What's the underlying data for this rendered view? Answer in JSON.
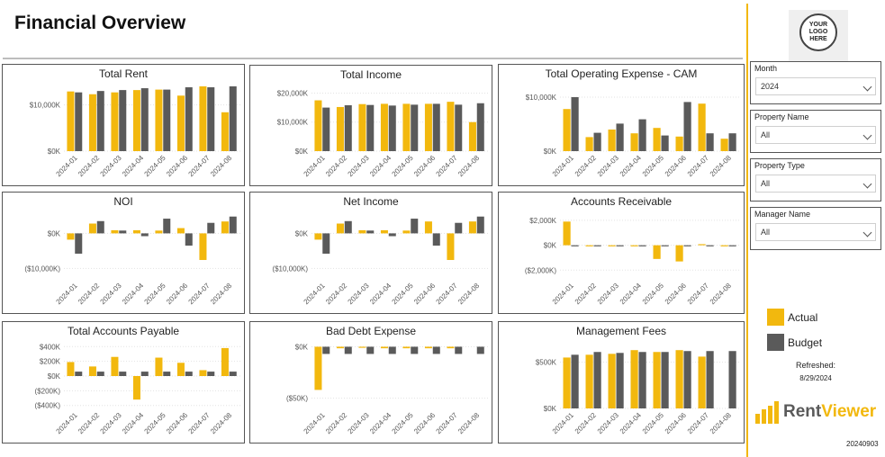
{
  "page": {
    "title": "Financial Overview"
  },
  "colors": {
    "actual": "#f2b80e",
    "budget": "#5a5a5a",
    "accent": "#f2b80e"
  },
  "months": [
    "2024-01",
    "2024-02",
    "2024-03",
    "2024-04",
    "2024-05",
    "2024-06",
    "2024-07",
    "2024-08"
  ],
  "chart_data": [
    {
      "id": "total-rent",
      "type": "bar",
      "title": "Total Rent",
      "categories": [
        "2024-01",
        "2024-02",
        "2024-03",
        "2024-04",
        "2024-05",
        "2024-06",
        "2024-07",
        "2024-08"
      ],
      "ylim": [
        0,
        14000
      ],
      "yticks": [
        0,
        10000
      ],
      "yticklabels": [
        "$0K",
        "$10,000K"
      ],
      "series": [
        {
          "name": "Actual",
          "values": [
            12900,
            12300,
            12700,
            13200,
            13300,
            12000,
            14000,
            8400
          ]
        },
        {
          "name": "Budget",
          "values": [
            12700,
            13000,
            13200,
            13600,
            13300,
            13800,
            13800,
            14000
          ]
        }
      ]
    },
    {
      "id": "total-income",
      "type": "bar",
      "title": "Total Income",
      "categories": [
        "2024-01",
        "2024-02",
        "2024-03",
        "2024-04",
        "2024-05",
        "2024-06",
        "2024-07",
        "2024-08"
      ],
      "ylim": [
        0,
        22000
      ],
      "yticks": [
        0,
        10000,
        20000
      ],
      "yticklabels": [
        "$0K",
        "$10,000K",
        "$20,000K"
      ],
      "series": [
        {
          "name": "Actual",
          "values": [
            17500,
            15200,
            16200,
            16300,
            16300,
            16300,
            17000,
            10000
          ]
        },
        {
          "name": "Budget",
          "values": [
            15000,
            15800,
            15900,
            15700,
            16000,
            16300,
            16000,
            16500
          ]
        }
      ]
    },
    {
      "id": "total-operating-expense-cam",
      "type": "bar",
      "title": "Total Operating Expense - CAM",
      "categories": [
        "2024-01",
        "2024-02",
        "2024-03",
        "2024-04",
        "2024-05",
        "2024-06",
        "2024-07",
        "2024-08"
      ],
      "ylim": [
        0,
        12000
      ],
      "yticks": [
        0,
        10000
      ],
      "yticklabels": [
        "$0K",
        "$10,000K"
      ],
      "series": [
        {
          "name": "Actual",
          "values": [
            7800,
            2600,
            4000,
            3300,
            4300,
            2700,
            8800,
            2300
          ]
        },
        {
          "name": "Budget",
          "values": [
            10000,
            3400,
            5100,
            5900,
            2900,
            9100,
            3300,
            3300
          ]
        }
      ]
    },
    {
      "id": "noi",
      "type": "bar",
      "title": "NOI",
      "categories": [
        "2024-01",
        "2024-02",
        "2024-03",
        "2024-04",
        "2024-05",
        "2024-06",
        "2024-07",
        "2024-08"
      ],
      "ylim": [
        -13000,
        5500
      ],
      "yticks": [
        0,
        -10000
      ],
      "yticklabels": [
        "$0K",
        "($10,000K)"
      ],
      "series": [
        {
          "name": "Actual",
          "values": [
            -1800,
            2800,
            900,
            900,
            800,
            1500,
            -7600,
            3400
          ]
        },
        {
          "name": "Budget",
          "values": [
            -5800,
            3500,
            800,
            -800,
            4200,
            -3500,
            3000,
            4800
          ]
        }
      ]
    },
    {
      "id": "net-income",
      "type": "bar",
      "title": "Net Income",
      "categories": [
        "2024-01",
        "2024-02",
        "2024-03",
        "2024-04",
        "2024-05",
        "2024-06",
        "2024-07",
        "2024-08"
      ],
      "ylim": [
        -13000,
        5500
      ],
      "yticks": [
        0,
        -10000
      ],
      "yticklabels": [
        "$0K",
        "($10,000K)"
      ],
      "series": [
        {
          "name": "Actual",
          "values": [
            -1800,
            2800,
            900,
            900,
            800,
            3400,
            -7600,
            3400
          ]
        },
        {
          "name": "Budget",
          "values": [
            -5800,
            3500,
            800,
            -800,
            4200,
            -3500,
            3000,
            4800
          ]
        }
      ]
    },
    {
      "id": "accounts-receivable",
      "type": "bar",
      "title": "Accounts Receivable",
      "categories": [
        "2024-01",
        "2024-02",
        "2024-03",
        "2024-04",
        "2024-05",
        "2024-06",
        "2024-07",
        "2024-08"
      ],
      "ylim": [
        -2700,
        2500
      ],
      "yticks": [
        2000,
        0,
        -2000
      ],
      "yticklabels": [
        "$2,000K",
        "$0K",
        "($2,000K)"
      ],
      "series": [
        {
          "name": "Actual",
          "values": [
            1900,
            -80,
            -50,
            -50,
            -1100,
            -1300,
            50,
            -50
          ]
        },
        {
          "name": "Budget",
          "values": [
            -20,
            -20,
            -20,
            -20,
            -20,
            -20,
            -20,
            -20
          ]
        }
      ]
    },
    {
      "id": "total-accounts-payable",
      "type": "bar",
      "title": "Total Accounts Payable",
      "categories": [
        "2024-01",
        "2024-02",
        "2024-03",
        "2024-04",
        "2024-05",
        "2024-06",
        "2024-07",
        "2024-08"
      ],
      "ylim": [
        -440000,
        440000
      ],
      "yticks": [
        400000,
        200000,
        0,
        -200000,
        -400000
      ],
      "yticklabels": [
        "$400K",
        "$200K",
        "$0K",
        "($200K)",
        "($400K)"
      ],
      "series": [
        {
          "name": "Actual",
          "values": [
            190000,
            130000,
            260000,
            -320000,
            250000,
            180000,
            80000,
            380000
          ]
        },
        {
          "name": "Budget",
          "values": [
            60000,
            60000,
            60000,
            60000,
            60000,
            60000,
            60000,
            60000
          ]
        }
      ]
    },
    {
      "id": "bad-debt-expense",
      "type": "bar",
      "title": "Bad Debt Expense",
      "categories": [
        "2024-01",
        "2024-02",
        "2024-03",
        "2024-04",
        "2024-05",
        "2024-06",
        "2024-07",
        "2024-08"
      ],
      "ylim": [
        -60000,
        3000
      ],
      "yticks": [
        0,
        -50000
      ],
      "yticklabels": [
        "$0K",
        "($50K)"
      ],
      "series": [
        {
          "name": "Actual",
          "values": [
            -42000,
            -1500,
            -1000,
            -1500,
            -1500,
            -1500,
            -1500,
            0
          ]
        },
        {
          "name": "Budget",
          "values": [
            -7000,
            -7000,
            -7000,
            -7000,
            -7000,
            -7000,
            -7000,
            -7000
          ]
        }
      ]
    },
    {
      "id": "management-fees",
      "type": "bar",
      "title": "Management Fees",
      "categories": [
        "2024-01",
        "2024-02",
        "2024-03",
        "2024-04",
        "2024-05",
        "2024-06",
        "2024-07",
        "2024-08"
      ],
      "ylim": [
        0,
        700000
      ],
      "yticks": [
        0,
        500000
      ],
      "yticklabels": [
        "$0K",
        "$500K"
      ],
      "series": [
        {
          "name": "Actual",
          "values": [
            550000,
            580000,
            590000,
            630000,
            610000,
            630000,
            560000,
            0
          ]
        },
        {
          "name": "Budget",
          "values": [
            580000,
            610000,
            600000,
            610000,
            610000,
            620000,
            620000,
            620000
          ]
        }
      ]
    }
  ],
  "logo": {
    "line1": "YOUR",
    "line2": "LOGO",
    "line3": "HERE"
  },
  "slicers": [
    {
      "label": "Month",
      "value": "2024"
    },
    {
      "label": "Property Name",
      "value": "All"
    },
    {
      "label": "Property Type",
      "value": "All"
    },
    {
      "label": "Manager Name",
      "value": "All"
    }
  ],
  "legend": {
    "actual": "Actual",
    "budget": "Budget"
  },
  "refreshed": {
    "label": "Refreshed:",
    "date": "8/29/2024"
  },
  "brand": {
    "part1": "Rent",
    "part2": "Viewer"
  },
  "version": "20240903"
}
